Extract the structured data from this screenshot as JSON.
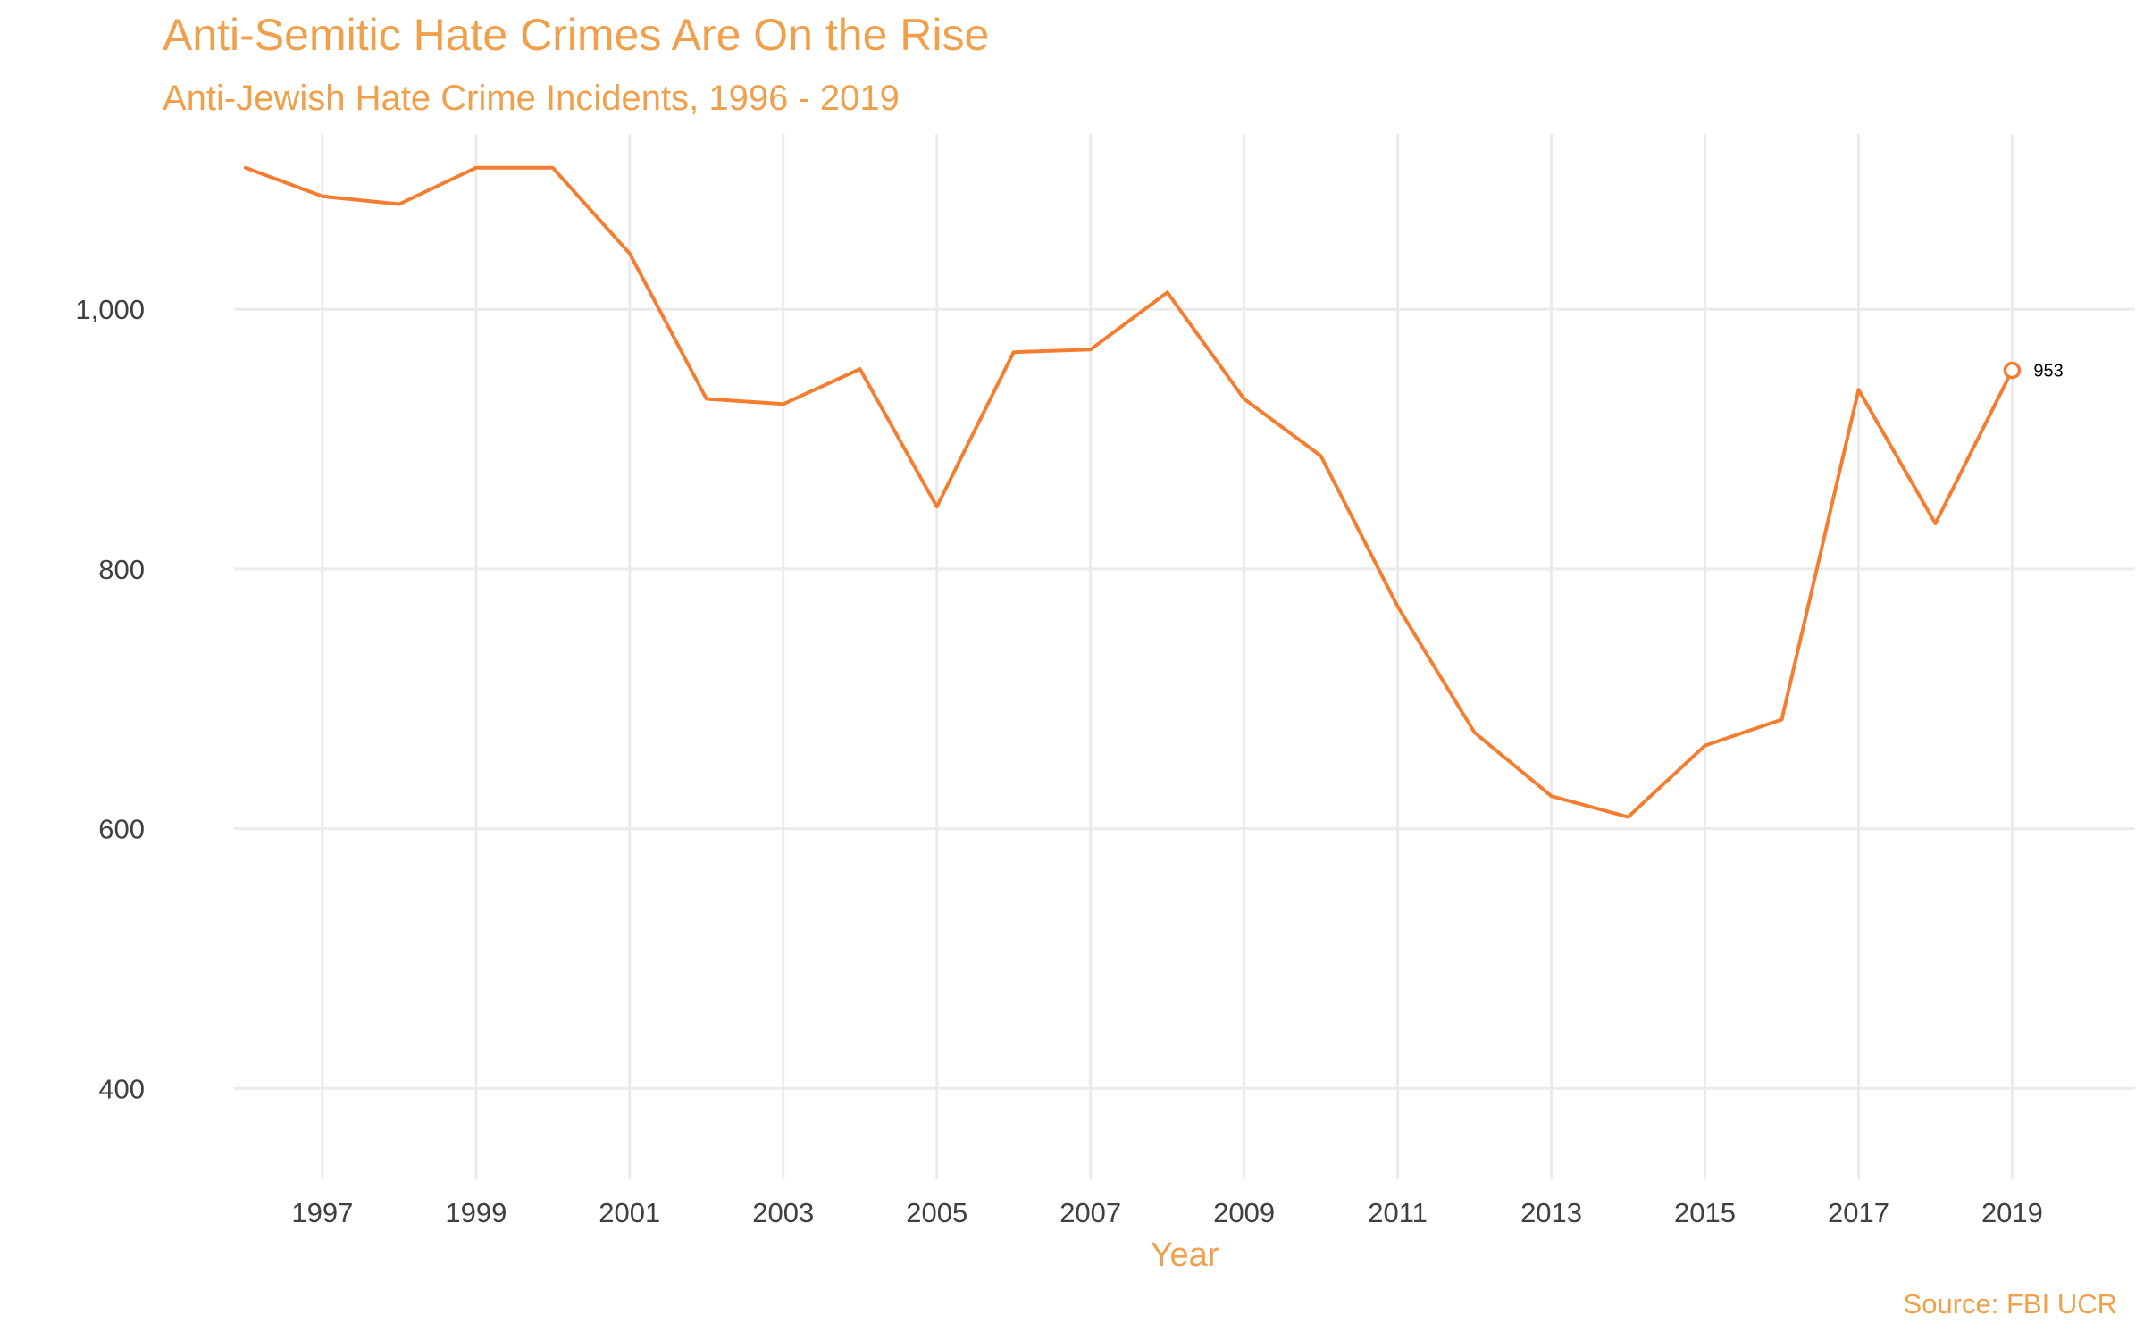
{
  "chart_data": {
    "type": "line",
    "title": "Anti-Semitic Hate Crimes Are On the Rise",
    "subtitle": "Anti-Jewish Hate Crime Incidents, 1996 - 2019",
    "xlabel": "Year",
    "ylabel": "",
    "caption": "Source: FBI UCR",
    "x": [
      1996,
      1997,
      1998,
      1999,
      2000,
      2001,
      2002,
      2003,
      2004,
      2005,
      2006,
      2007,
      2008,
      2009,
      2010,
      2011,
      2012,
      2013,
      2014,
      2015,
      2016,
      2017,
      2018,
      2019
    ],
    "series": [
      {
        "values": [
          1109,
          1087,
          1081,
          1109,
          1109,
          1043,
          931,
          927,
          954,
          848,
          967,
          969,
          1013,
          931,
          887,
          771,
          674,
          625,
          609,
          664,
          684,
          938,
          835,
          953
        ]
      }
    ],
    "xticks": [
      "1997",
      "1999",
      "2001",
      "2003",
      "2005",
      "2007",
      "2009",
      "2011",
      "2013",
      "2015",
      "2017",
      "2019"
    ],
    "yticks": [
      "400",
      "600",
      "800",
      "1,000"
    ],
    "xlim": [
      1995.85,
      2020.6
    ],
    "ylim": [
      330,
      1135
    ],
    "end_label": "953",
    "grid": true,
    "line_color": "#F47D30",
    "text_color": "#F0A04B"
  }
}
